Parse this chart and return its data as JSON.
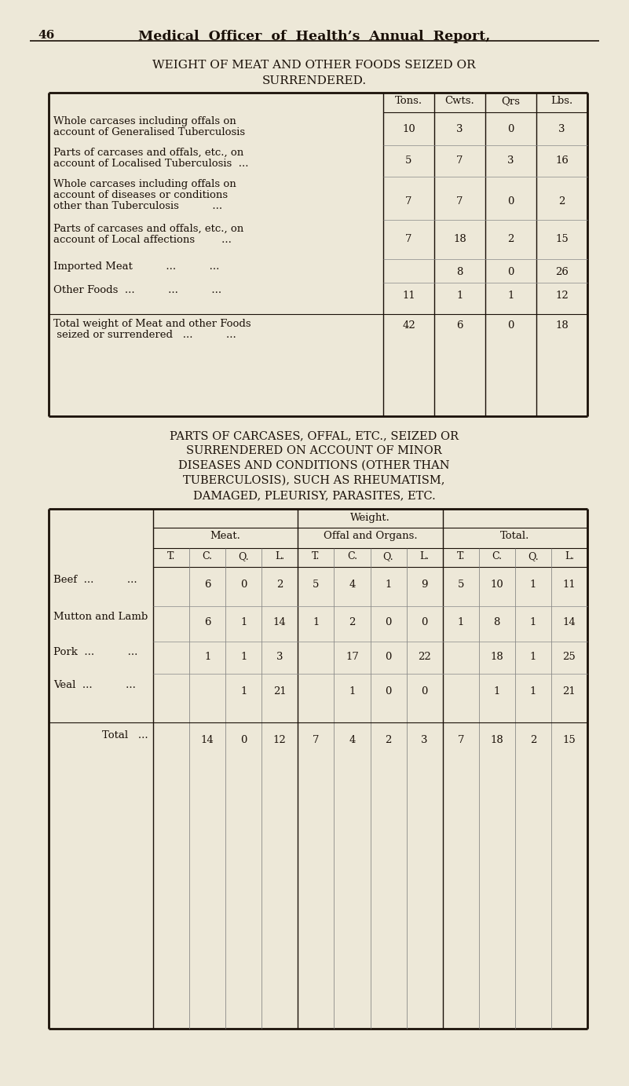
{
  "bg_color": "#ede8d8",
  "text_color": "#1a1008",
  "page_number": "46",
  "header_title": "Medical  Officer  of  Health’s  Annual  Report,",
  "title1_line1": "WEIGHT OF MEAT AND OTHER FOODS SEIZED OR",
  "title1_line2": "SURRENDERED.",
  "table1_col_headers": [
    "Tons.",
    "Cwts.",
    "Qrs",
    "Lbs."
  ],
  "table1_rows": [
    {
      "label_lines": [
        "Whole carcases including offals on",
        "account of Generalised Tuberculosis"
      ],
      "values": [
        "10",
        "3",
        "0",
        "3"
      ]
    },
    {
      "label_lines": [
        "Parts of carcases and offals, etc., on",
        "account of Localised Tuberculosis  ..."
      ],
      "values": [
        "5",
        "7",
        "3",
        "16"
      ]
    },
    {
      "label_lines": [
        "Whole carcases including offals on",
        "account of diseases or conditions",
        "other than Tuberculosis          ..."
      ],
      "values": [
        "7",
        "7",
        "0",
        "2"
      ]
    },
    {
      "label_lines": [
        "Parts of carcases and offals, etc., on",
        "account of Local affections        ..."
      ],
      "values": [
        "7",
        "18",
        "2",
        "15"
      ]
    },
    {
      "label_lines": [
        "Imported Meat          ...          ..."
      ],
      "values": [
        "",
        "8",
        "0",
        "26"
      ]
    },
    {
      "label_lines": [
        "Other Foods  ...          ...          ..."
      ],
      "values": [
        "11",
        "1",
        "1",
        "12"
      ]
    }
  ],
  "table1_total_label_lines": [
    "Total weight of Meat and other Foods",
    " seized or surrendered   ...          ..."
  ],
  "table1_total_values": [
    "42",
    "6",
    "0",
    "18"
  ],
  "title2_lines": [
    "PARTS OF CARCASES, OFFAL, ETC., SEIZED OR",
    "SURRENDERED ON ACCOUNT OF MINOR",
    "DISEASES AND CONDITIONS (OTHER THAN",
    "TUBERCULOSIS), SUCH AS RHEUMATISM,",
    "DAMAGED, PLEURISY, PARASITES, ETC."
  ],
  "table2_weight_label": "Weight.",
  "table2_meat_label": "Meat.",
  "table2_offal_label": "Offal and Organs.",
  "table2_total_label": "Total.",
  "table2_sub_headers": [
    "T.",
    "C.",
    "Q.",
    "L.",
    "T.",
    "C.",
    "Q.",
    "L.",
    "T.",
    "C.",
    "Q.",
    "L."
  ],
  "table2_rows": [
    {
      "label": "Beef  ...          ...",
      "meat": [
        "",
        "6",
        "0",
        "2"
      ],
      "offal": [
        "5",
        "4",
        "1",
        "9"
      ],
      "total": [
        "5",
        "10",
        "1",
        "11"
      ]
    },
    {
      "label": "Mutton and Lamb",
      "meat": [
        "",
        "6",
        "1",
        "14"
      ],
      "offal": [
        "1",
        "2",
        "0",
        "0"
      ],
      "total": [
        "1",
        "8",
        "1",
        "14"
      ]
    },
    {
      "label": "Pork  ...          ...",
      "meat": [
        "",
        "1",
        "1",
        "3"
      ],
      "offal": [
        "",
        "17",
        "0",
        "22"
      ],
      "total": [
        "",
        "18",
        "1",
        "25"
      ]
    },
    {
      "label": "Veal  ...          ...",
      "meat": [
        "",
        "",
        "1",
        "21"
      ],
      "offal": [
        "",
        "1",
        "0",
        "0"
      ],
      "total": [
        "",
        "1",
        "1",
        "21"
      ]
    }
  ],
  "table2_total_row": {
    "label": "Total  ...",
    "meat": [
      "",
      "14",
      "0",
      "12"
    ],
    "offal": [
      "7",
      "4",
      "2",
      "3"
    ],
    "total": [
      "7",
      "18",
      "2",
      "15"
    ]
  }
}
